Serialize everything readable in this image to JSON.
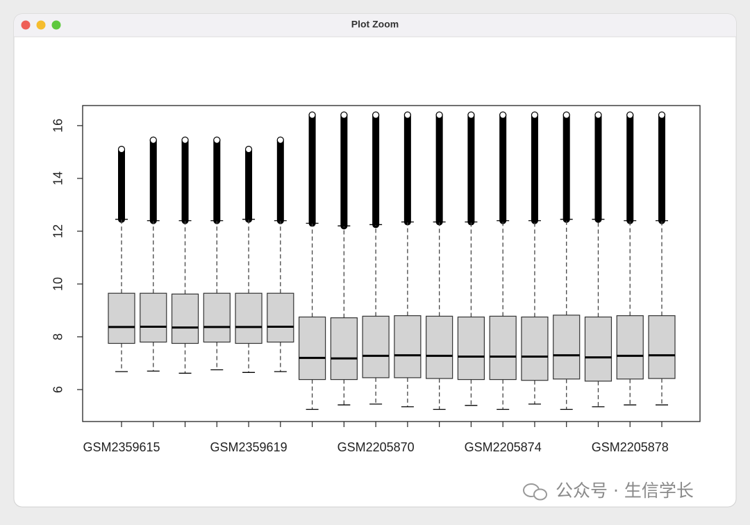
{
  "window": {
    "title": "Plot Zoom"
  },
  "watermark": "公众号 · 生信学长",
  "chart_data": {
    "type": "boxplot",
    "categories": [
      "GSM2359615",
      null,
      null,
      null,
      "GSM2359619",
      null,
      null,
      null,
      "GSM2205870",
      null,
      null,
      null,
      "GSM2205874",
      null,
      null,
      null,
      "GSM2205878",
      null
    ],
    "whisker_low": [
      6.68,
      6.7,
      6.62,
      6.75,
      6.65,
      6.68,
      5.25,
      5.42,
      5.45,
      5.35,
      5.25,
      5.4,
      5.25,
      5.45,
      5.25,
      5.35,
      5.42,
      5.42
    ],
    "q1": [
      7.75,
      7.8,
      7.75,
      7.8,
      7.75,
      7.8,
      6.38,
      6.38,
      6.45,
      6.45,
      6.42,
      6.38,
      6.38,
      6.35,
      6.4,
      6.32,
      6.4,
      6.42
    ],
    "median": [
      8.37,
      8.38,
      8.35,
      8.37,
      8.37,
      8.38,
      7.2,
      7.18,
      7.28,
      7.3,
      7.28,
      7.25,
      7.25,
      7.25,
      7.3,
      7.22,
      7.28,
      7.3
    ],
    "q3": [
      9.65,
      9.65,
      9.62,
      9.65,
      9.65,
      9.65,
      8.75,
      8.72,
      8.78,
      8.8,
      8.78,
      8.75,
      8.78,
      8.75,
      8.82,
      8.75,
      8.8,
      8.8
    ],
    "whisker_high": [
      12.45,
      12.4,
      12.4,
      12.4,
      12.45,
      12.4,
      12.3,
      12.2,
      12.25,
      12.35,
      12.35,
      12.35,
      12.4,
      12.4,
      12.45,
      12.45,
      12.4,
      12.4
    ],
    "outlier_max": [
      15.1,
      15.45,
      15.45,
      15.45,
      15.1,
      15.45,
      16.4,
      16.4,
      16.4,
      16.4,
      16.4,
      16.4,
      16.4,
      16.4,
      16.4,
      16.4,
      16.4,
      16.4
    ],
    "box_color": "#d3d3d3",
    "ylim": [
      4.79,
      16.76
    ],
    "yticks": [
      6,
      8,
      10,
      12,
      14,
      16
    ]
  }
}
